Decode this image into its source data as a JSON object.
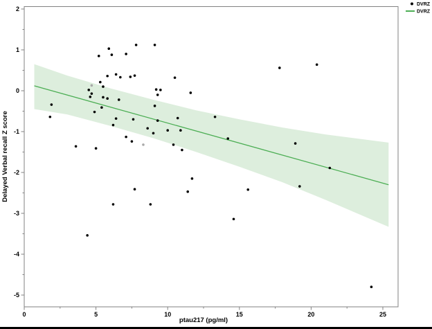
{
  "chart_data": {
    "type": "scatter",
    "title": "",
    "xlabel": "ptau217 (pg/ml)",
    "ylabel": "Delayed Verbal recall Z score",
    "xlim": [
      0,
      26
    ],
    "ylim": [
      -5.3,
      2.1
    ],
    "grid": false,
    "legend_position": "top-right",
    "x_major_ticks": [
      0,
      5,
      10,
      15,
      20,
      25
    ],
    "x_minor_ticks": [
      2.5,
      7.5,
      12.5,
      17.5,
      22.5
    ],
    "y_major_ticks": [
      2,
      1,
      0,
      -1,
      -2,
      -3,
      -4,
      -5
    ],
    "y_minor_ticks": [
      1.5,
      0.5,
      -0.5,
      -1.5,
      -2.5,
      -3.5,
      -4.5
    ],
    "legend": [
      {
        "label": "DVRZ",
        "marker": "dot",
        "color": "#000000"
      },
      {
        "label": "DVRZ",
        "marker": "line",
        "color": "#4cae54"
      }
    ],
    "series": [
      {
        "name": "DVRZ",
        "type": "scatter",
        "color": "#000000",
        "points": [
          [
            1.8,
            -0.64
          ],
          [
            1.9,
            -0.34
          ],
          [
            3.6,
            -1.36
          ],
          [
            4.4,
            -3.54
          ],
          [
            4.5,
            0.02
          ],
          [
            4.6,
            -0.15
          ],
          [
            4.7,
            -0.07
          ],
          [
            4.9,
            -0.52
          ],
          [
            5.0,
            -1.41
          ],
          [
            5.2,
            0.85
          ],
          [
            5.3,
            0.21
          ],
          [
            5.4,
            -0.41
          ],
          [
            5.5,
            0.1
          ],
          [
            5.5,
            -0.16
          ],
          [
            5.8,
            0.36
          ],
          [
            5.8,
            -0.19
          ],
          [
            5.9,
            1.03
          ],
          [
            6.1,
            0.88
          ],
          [
            6.2,
            -0.84
          ],
          [
            6.2,
            -2.78
          ],
          [
            6.4,
            0.4
          ],
          [
            6.4,
            -0.68
          ],
          [
            6.6,
            -0.22
          ],
          [
            6.7,
            0.33
          ],
          [
            7.1,
            0.9
          ],
          [
            7.1,
            -1.13
          ],
          [
            7.4,
            0.34
          ],
          [
            7.5,
            -1.24
          ],
          [
            7.6,
            -0.7
          ],
          [
            7.7,
            0.37
          ],
          [
            7.7,
            -2.41
          ],
          [
            7.8,
            1.12
          ],
          [
            8.6,
            -0.92
          ],
          [
            8.8,
            -2.78
          ],
          [
            9.0,
            -1.04
          ],
          [
            9.1,
            1.12
          ],
          [
            9.1,
            -0.37
          ],
          [
            9.2,
            0.03
          ],
          [
            9.3,
            -0.1
          ],
          [
            9.3,
            -0.73
          ],
          [
            9.5,
            0.02
          ],
          [
            10.0,
            -0.97
          ],
          [
            10.4,
            -1.32
          ],
          [
            10.5,
            0.32
          ],
          [
            10.7,
            -0.67
          ],
          [
            10.9,
            -0.97
          ],
          [
            11.0,
            -1.45
          ],
          [
            11.4,
            -2.47
          ],
          [
            11.6,
            -0.05
          ],
          [
            11.7,
            -2.15
          ],
          [
            13.3,
            -0.64
          ],
          [
            14.2,
            -1.17
          ],
          [
            14.6,
            -3.14
          ],
          [
            15.6,
            -2.42
          ],
          [
            17.8,
            0.56
          ],
          [
            18.9,
            -1.29
          ],
          [
            19.2,
            -2.34
          ],
          [
            20.4,
            0.64
          ],
          [
            21.3,
            -1.89
          ],
          [
            24.2,
            -4.8
          ]
        ]
      },
      {
        "name": "DVRZ-gray",
        "type": "scatter",
        "color": "#a9a9a9",
        "points": [
          [
            4.7,
            0.13
          ],
          [
            8.3,
            -1.32
          ]
        ]
      },
      {
        "name": "DVRZ fit",
        "type": "regression-line",
        "color": "#4cae54",
        "points": [
          [
            0.7,
            0.12
          ],
          [
            25.4,
            -2.3
          ]
        ]
      },
      {
        "name": "DVRZ 95% confidence band",
        "type": "confidence-band",
        "color": "#ddeedd",
        "stations": [
          [
            0.7,
            0.65,
            -0.45
          ],
          [
            3,
            0.37,
            -0.58
          ],
          [
            6,
            0.06,
            -0.86
          ],
          [
            9,
            -0.22,
            -1.16
          ],
          [
            12,
            -0.48,
            -1.5
          ],
          [
            15,
            -0.7,
            -1.86
          ],
          [
            18,
            -0.9,
            -2.24
          ],
          [
            21,
            -1.07,
            -2.67
          ],
          [
            25.4,
            -1.27,
            -3.33
          ]
        ]
      }
    ],
    "frame_color": "#828282"
  }
}
